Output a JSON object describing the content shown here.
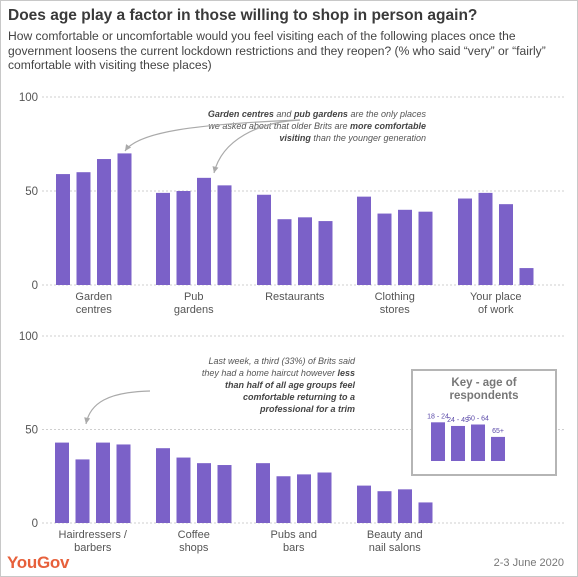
{
  "header": {
    "title": "Does age play a factor in those willing to shop in person again?",
    "subtitle": "How comfortable or uncomfortable would you feel visiting each of the following places once the government loosens the current lockdown restrictions and they reopen? (% who said “very” or “fairly” comfortable with visiting these places)"
  },
  "colors": {
    "bar": "#7b61c8",
    "key_bar": "#7b61c8",
    "grid": "#cfcfcf",
    "accent": "#e7603b"
  },
  "chart_data": [
    {
      "type": "bar",
      "categories": [
        [
          "Garden",
          "centres"
        ],
        [
          "Pub",
          "gardens"
        ],
        [
          "Restaurants"
        ],
        [
          "Clothing",
          "stores"
        ],
        [
          "Your place",
          "of work"
        ]
      ],
      "series": [
        {
          "name": "18 - 24",
          "values": [
            59,
            49,
            48,
            47,
            46
          ]
        },
        {
          "name": "24 - 49",
          "values": [
            60,
            50,
            35,
            38,
            49
          ]
        },
        {
          "name": "50 - 64",
          "values": [
            67,
            57,
            36,
            40,
            43
          ]
        },
        {
          "name": "65+",
          "values": [
            70,
            53,
            34,
            39,
            9
          ]
        }
      ],
      "yticks": [
        "100",
        "50",
        "0"
      ],
      "ylim": [
        0,
        100
      ],
      "grid": true,
      "annotation": [
        [
          {
            "t": "Garden centres",
            "b": true
          },
          {
            "t": " and ",
            "b": false
          },
          {
            "t": "pub gardens",
            "b": true
          },
          {
            "t": " are the only places",
            "b": false
          }
        ],
        [
          {
            "t": "we asked about that older Brits are ",
            "b": false
          },
          {
            "t": "more comfortable",
            "b": true
          }
        ],
        [
          {
            "t": "visiting",
            "b": true
          },
          {
            "t": " than the younger generation",
            "b": false
          }
        ]
      ]
    },
    {
      "type": "bar",
      "categories": [
        [
          "Hairdressers /",
          "barbers"
        ],
        [
          "Coffee",
          "shops"
        ],
        [
          "Pubs and",
          "bars"
        ],
        [
          "Beauty and",
          "nail salons"
        ]
      ],
      "series": [
        {
          "name": "18 - 24",
          "values": [
            43,
            40,
            32,
            20
          ]
        },
        {
          "name": "24 - 49",
          "values": [
            34,
            35,
            25,
            17
          ]
        },
        {
          "name": "50 - 64",
          "values": [
            43,
            32,
            26,
            18
          ]
        },
        {
          "name": "65+",
          "values": [
            42,
            31,
            27,
            11
          ]
        }
      ],
      "yticks": [
        "100",
        "50",
        "0"
      ],
      "ylim": [
        0,
        100
      ],
      "grid": true,
      "annotation": [
        [
          {
            "t": "Last week, a third (33%) of Brits said",
            "b": false
          }
        ],
        [
          {
            "t": "they had a home haircut however ",
            "b": false
          },
          {
            "t": "less",
            "b": true
          }
        ],
        [
          {
            "t": "than half of all age groups feel",
            "b": true
          }
        ],
        [
          {
            "t": "comfortable returning to a",
            "b": true
          }
        ],
        [
          {
            "t": "professional for a trim",
            "b": true
          }
        ]
      ]
    }
  ],
  "key": {
    "title_lines": [
      "Key - age of",
      "respondents"
    ],
    "labels": [
      "18 - 24",
      "24 - 49",
      "50 - 64",
      "65+"
    ],
    "values": [
      53,
      48,
      50,
      33
    ]
  },
  "footer": {
    "logo": "YouGov",
    "date": "2-3 June 2020"
  }
}
